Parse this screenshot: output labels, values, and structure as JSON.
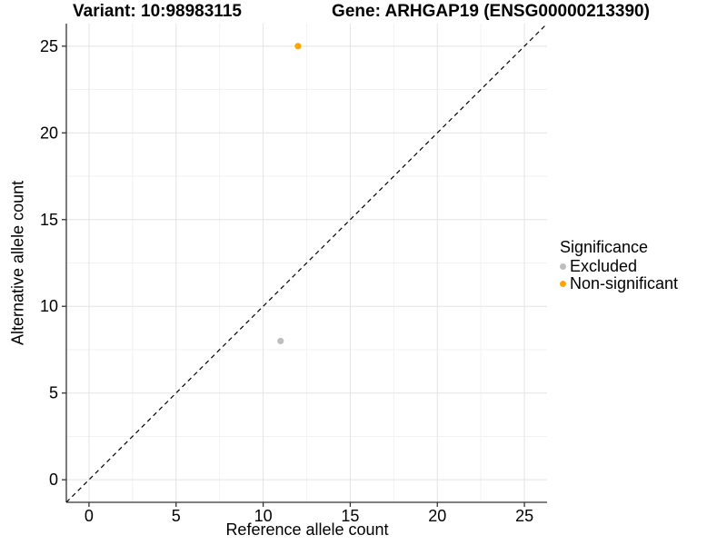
{
  "figure": {
    "title_left": "Variant: 10:98983115",
    "title_right": "Gene: ARHGAP19 (ENSG00000213390)"
  },
  "axes": {
    "x_title": "Reference allele count",
    "y_title": "Alternative allele count"
  },
  "legend": {
    "title": "Significance",
    "items": [
      {
        "label": "Excluded",
        "color": "#BEBEBE"
      },
      {
        "label": "Non-significant",
        "color": "#FFA500"
      }
    ]
  },
  "chart_data": {
    "type": "scatter",
    "title_left": "Variant: 10:98983115",
    "title_right": "Gene: ARHGAP19 (ENSG00000213390)",
    "xlabel": "Reference allele count",
    "ylabel": "Alternative allele count",
    "xlim": [
      -1.3,
      26.3
    ],
    "ylim": [
      -1.3,
      26.3
    ],
    "x_ticks": [
      0,
      5,
      10,
      15,
      20,
      25
    ],
    "y_ticks": [
      0,
      5,
      10,
      15,
      20,
      25
    ],
    "x_minor_ticks": [
      2.5,
      7.5,
      12.5,
      17.5,
      22.5
    ],
    "y_minor_ticks": [
      2.5,
      7.5,
      12.5,
      17.5,
      22.5
    ],
    "grid": true,
    "legend_position": "right",
    "reference_line": {
      "type": "identity",
      "slope": 1,
      "intercept": 0,
      "style": "dashed",
      "color": "#000000"
    },
    "series": [
      {
        "name": "Excluded",
        "color": "#BEBEBE",
        "points": [
          {
            "x": 11,
            "y": 8
          }
        ]
      },
      {
        "name": "Non-significant",
        "color": "#FFA500",
        "points": [
          {
            "x": 12,
            "y": 25
          }
        ]
      }
    ],
    "colors": {
      "major_gridline": "#e3e3e3",
      "minor_gridline": "#f2f2f2",
      "axis_line": "#333333",
      "tick_label": "#000000"
    }
  }
}
